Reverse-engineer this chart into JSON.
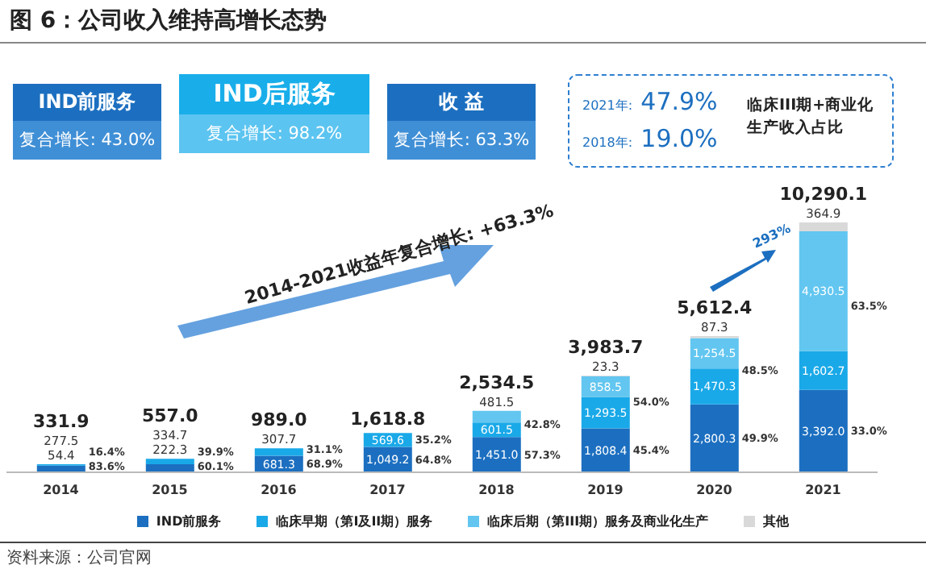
{
  "chart_data": {
    "type": "bar",
    "title": "图 6：公司收入维持高增长态势",
    "stacked": true,
    "legend": "bottom",
    "categories": [
      "2014",
      "2015",
      "2016",
      "2017",
      "2018",
      "2019",
      "2020",
      "2021"
    ],
    "series": [
      {
        "name": "IND前服务",
        "color": "#1c6fc0",
        "values": [
          277.5,
          334.7,
          681.3,
          1049.2,
          1451.0,
          1808.4,
          2800.3,
          3392.0
        ],
        "value_labels": [
          "277.5",
          "334.7",
          "681.3",
          "1,049.2",
          "1,451.0",
          "1,808.4",
          "2,800.3",
          "3,392.0"
        ]
      },
      {
        "name": "临床早期（第I及II期）服务",
        "color": "#1aa9e8",
        "values": [
          54.4,
          222.3,
          307.7,
          569.6,
          601.5,
          1293.5,
          1470.3,
          1602.7
        ],
        "value_labels": [
          "54.4",
          "222.3",
          "307.7",
          "569.6",
          "601.5",
          "1,293.5",
          "1,470.3",
          "1,602.7"
        ]
      },
      {
        "name": "临床后期（第III期）服务及商业化生产",
        "color": "#62c6f0",
        "values": [
          null,
          null,
          null,
          null,
          481.5,
          858.5,
          1254.5,
          4930.5
        ],
        "value_labels": [
          null,
          null,
          null,
          null,
          "481.5",
          "858.5",
          "1,254.5",
          "4,930.5"
        ]
      },
      {
        "name": "其他",
        "color": "#d9d9d9",
        "values": [
          null,
          null,
          null,
          null,
          0.5,
          23.3,
          87.3,
          364.9
        ],
        "value_labels": [
          null,
          null,
          null,
          null,
          null,
          "23.3",
          "87.3",
          "364.9"
        ]
      }
    ],
    "totals": [
      "331.9",
      "557.0",
      "989.0",
      "1,618.8",
      "2,534.5",
      "3,983.7",
      "5,612.4",
      "10,290.1"
    ],
    "annotations": [
      "IND前服务",
      "复合增长: 43.0%",
      "IND后服务",
      "复合增长: 98.2%",
      "收 益",
      "复合增长: 63.3%",
      "2021年:",
      "47.9%",
      "2018年:",
      "19.0%",
      "临床III期+商业化生产收入占比",
      "2014-2021收益年复合增长: +63.3%",
      "293%",
      "资料来源：公司官网",
      "16.4%",
      "83.6%",
      "39.9%",
      "60.1%",
      "31.1%",
      "68.9%",
      "35.2%",
      "64.8%",
      "42.8%",
      "57.3%",
      "54.0%",
      "45.4%",
      "48.5%",
      "49.9%",
      "63.5%",
      "33.0%"
    ]
  }
}
